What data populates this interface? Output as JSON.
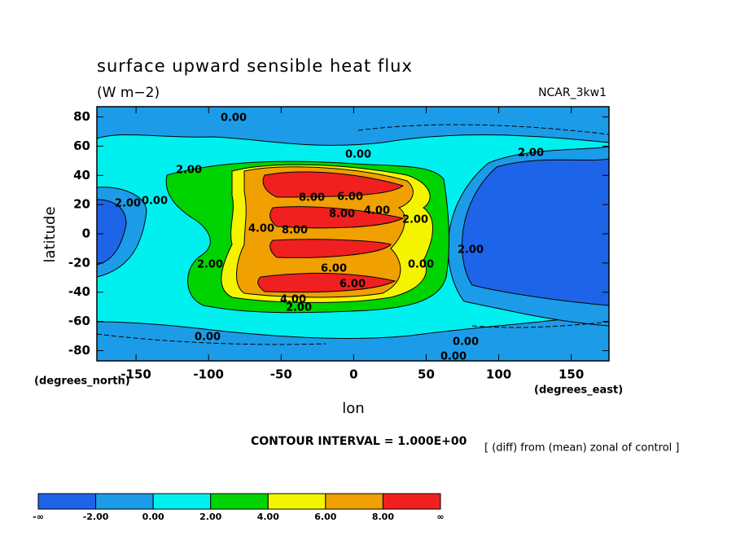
{
  "chart_data": {
    "type": "contour",
    "title": "surface upward sensible heat flux",
    "units": "(W m−2)",
    "model": "NCAR_3kw1",
    "x_label": "lon",
    "y_label": "latitude",
    "x_unit": "(degrees_east)",
    "y_unit": "(degrees_north)",
    "contour_interval": "CONTOUR INTERVAL = 1.000E+00",
    "note": "[ (diff) from (mean) zonal of control ]",
    "xlim": [
      -177,
      176
    ],
    "ylim": [
      -87,
      87
    ],
    "xticks": [
      -150,
      -100,
      -50,
      0,
      50,
      100,
      150
    ],
    "yticks": [
      -80,
      -60,
      -40,
      -20,
      0,
      20,
      40,
      60,
      80
    ],
    "colorbar": {
      "labels": [
        "-∞",
        "-2.00",
        "0.00",
        "2.00",
        "4.00",
        "6.00",
        "8.00",
        "∞"
      ],
      "colors": [
        "#1e64e8",
        "#1c9ce8",
        "#00f0f0",
        "#00d400",
        "#f4f400",
        "#f0a000",
        "#f02020"
      ]
    },
    "contour_labels": [
      "0.00",
      "0.00",
      "2.00",
      "2.00",
      "2.00",
      "0.00",
      "8.00",
      "6.00",
      "8.00",
      "4.00",
      "2.00",
      "4.00",
      "8.00",
      "2.00",
      "0.00",
      "6.00",
      "2.00",
      "6.00",
      "4.00",
      "2.00",
      "0.00",
      "0.00",
      "0.00"
    ]
  }
}
